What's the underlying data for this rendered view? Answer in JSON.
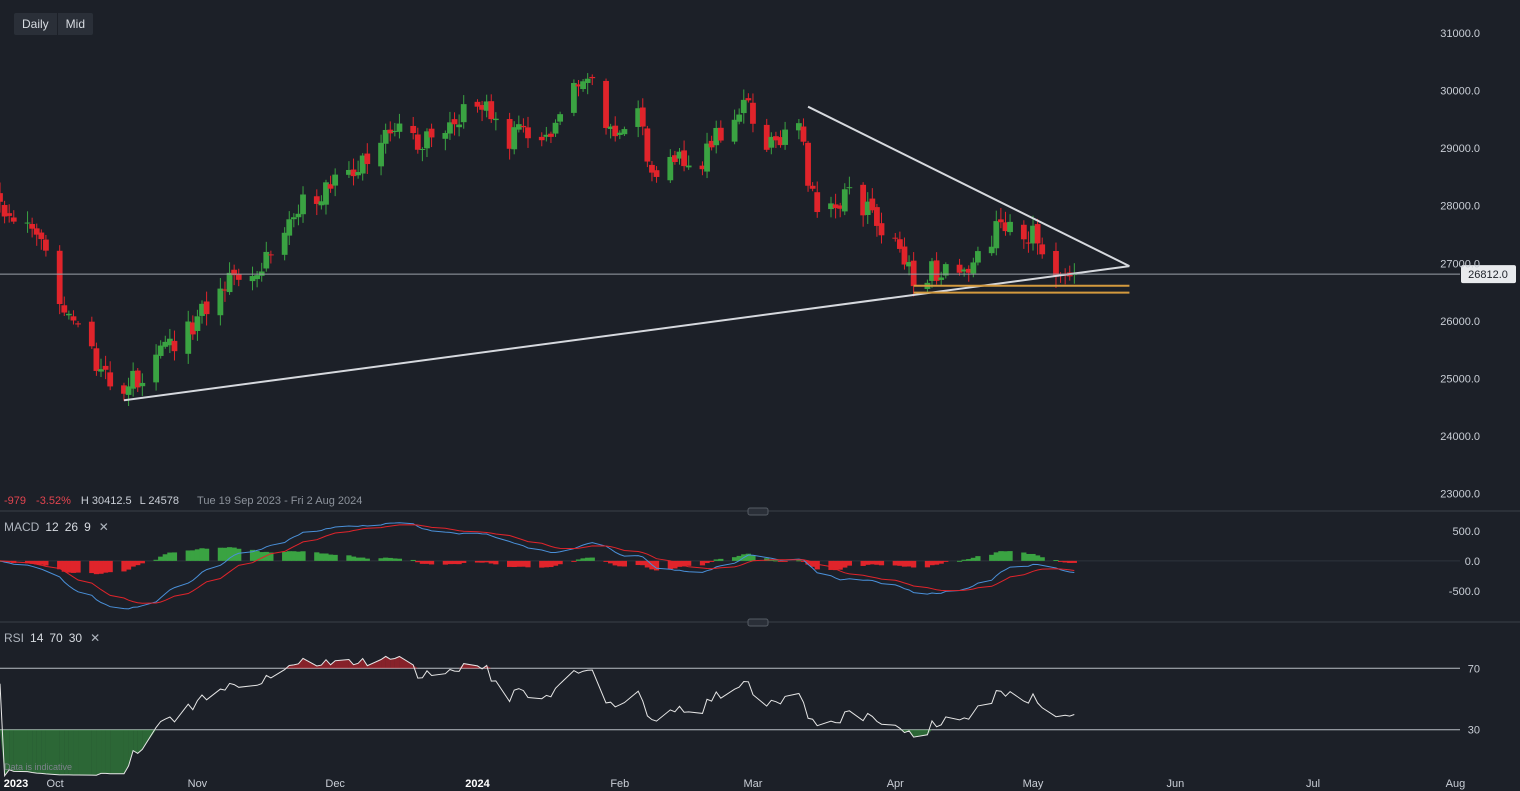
{
  "toolbar": {
    "timeframe": "Daily",
    "price_type": "Mid"
  },
  "info_bar": {
    "change": "-979",
    "change_pct": "-3.52%",
    "high": "H 30412.5",
    "low": "L 24578",
    "date_range": "Tue 19 Sep 2023 - Fri 2 Aug 2024"
  },
  "macd_label": {
    "name": "MACD",
    "fast": "12",
    "slow": "26",
    "signal": "9"
  },
  "rsi_label": {
    "name": "RSI",
    "period": "14",
    "upper": "70",
    "lower": "30"
  },
  "disclaimer": "Data is indicative",
  "colors": {
    "up": "#3aa342",
    "down": "#e0242b",
    "trendline": "#d6d9de",
    "support": "#d49a3e",
    "macd_line": "#4a90d9",
    "signal_line": "#e0242b",
    "rsi_line": "#e6e6e6"
  },
  "chart_data": [
    {
      "type": "candlestick",
      "title": "",
      "timeframe": "Daily",
      "y_ticks": [
        23000,
        24000,
        25000,
        26000,
        27000,
        28000,
        29000,
        30000,
        31000
      ],
      "y_tick_labels": [
        "23000.0",
        "24000.0",
        "25000.0",
        "26000.0",
        "27000.0",
        "28000.0",
        "29000.0",
        "30000.0",
        "31000.0"
      ],
      "ylim": [
        22800,
        31400
      ],
      "x_tick_labels": [
        "2023",
        "Oct",
        "Nov",
        "Dec",
        "2024",
        "Feb",
        "Mar",
        "Apr",
        "May",
        "Jun",
        "Jul",
        "Aug"
      ],
      "x_ticks": [
        "2023-09-19",
        "2023-10-01",
        "2023-11-01",
        "2023-12-01",
        "2024-01-01",
        "2024-02-01",
        "2024-03-01",
        "2024-04-01",
        "2024-05-01",
        "2024-06-01",
        "2024-07-01",
        "2024-08-01"
      ],
      "xlim": [
        "2023-09-19",
        "2024-08-02"
      ],
      "last_price": 26812,
      "last_price_label": "26812.0",
      "anchors": [
        [
          "2023-09-19",
          28000
        ],
        [
          "2023-09-22",
          27800
        ],
        [
          "2023-09-27",
          27400
        ],
        [
          "2023-10-02",
          26500
        ],
        [
          "2023-10-06",
          25900
        ],
        [
          "2023-10-11",
          25000
        ],
        [
          "2023-10-16",
          24850
        ],
        [
          "2023-10-20",
          25050
        ],
        [
          "2023-10-25",
          25500
        ],
        [
          "2023-10-31",
          25950
        ],
        [
          "2023-11-06",
          26600
        ],
        [
          "2023-11-10",
          26900
        ],
        [
          "2023-11-15",
          27000
        ],
        [
          "2023-11-20",
          27600
        ],
        [
          "2023-11-24",
          28100
        ],
        [
          "2023-11-29",
          28250
        ],
        [
          "2023-12-05",
          28600
        ],
        [
          "2023-12-11",
          29000
        ],
        [
          "2023-12-14",
          29500
        ],
        [
          "2023-12-19",
          29050
        ],
        [
          "2023-12-22",
          29200
        ],
        [
          "2023-12-28",
          29600
        ],
        [
          "2024-01-04",
          29700
        ],
        [
          "2024-01-08",
          29150
        ],
        [
          "2024-01-12",
          29300
        ],
        [
          "2024-01-17",
          29200
        ],
        [
          "2024-01-22",
          29950
        ],
        [
          "2024-01-26",
          30100
        ],
        [
          "2024-01-30",
          29200
        ],
        [
          "2024-02-05",
          29700
        ],
        [
          "2024-02-08",
          28400
        ],
        [
          "2024-02-13",
          28900
        ],
        [
          "2024-02-19",
          28800
        ],
        [
          "2024-02-23",
          29300
        ],
        [
          "2024-02-28",
          29750
        ],
        [
          "2024-03-04",
          29100
        ],
        [
          "2024-03-08",
          29200
        ],
        [
          "2024-03-11",
          29400
        ],
        [
          "2024-03-14",
          28100
        ],
        [
          "2024-03-18",
          27900
        ],
        [
          "2024-03-22",
          28300
        ],
        [
          "2024-03-26",
          27900
        ],
        [
          "2024-03-29",
          27600
        ],
        [
          "2024-04-03",
          27100
        ],
        [
          "2024-04-05",
          26800
        ],
        [
          "2024-04-10",
          26900
        ],
        [
          "2024-04-15",
          26650
        ],
        [
          "2024-04-19",
          27150
        ],
        [
          "2024-04-24",
          27650
        ],
        [
          "2024-04-29",
          27450
        ],
        [
          "2024-05-01",
          27450
        ],
        [
          "2024-05-03",
          27300
        ],
        [
          "2024-05-06",
          26950
        ],
        [
          "2024-05-08",
          26750
        ],
        [
          "2024-05-10",
          26812
        ]
      ],
      "annotations": {
        "trendline_support": {
          "from": [
            "2023-10-16",
            24620
          ],
          "to": [
            "2024-05-22",
            26950
          ]
        },
        "trendline_resistance": {
          "from": [
            "2024-03-13",
            29720
          ],
          "to": [
            "2024-05-22",
            26950
          ]
        },
        "support_zone": {
          "from": "2024-04-05",
          "to": "2024-05-22",
          "y": [
            26490,
            26610
          ]
        }
      }
    },
    {
      "type": "macd",
      "params": [
        12,
        26,
        9
      ],
      "y_ticks": [
        -500,
        0,
        500
      ],
      "y_tick_labels": [
        "-500.0",
        "0.0",
        "500.0"
      ],
      "ylim": [
        -900,
        680
      ]
    },
    {
      "type": "rsi",
      "params": [
        14,
        70,
        30
      ],
      "y_ticks": [
        30,
        70
      ],
      "y_tick_labels": [
        "30",
        "70"
      ],
      "ylim": [
        7,
        93
      ]
    }
  ]
}
